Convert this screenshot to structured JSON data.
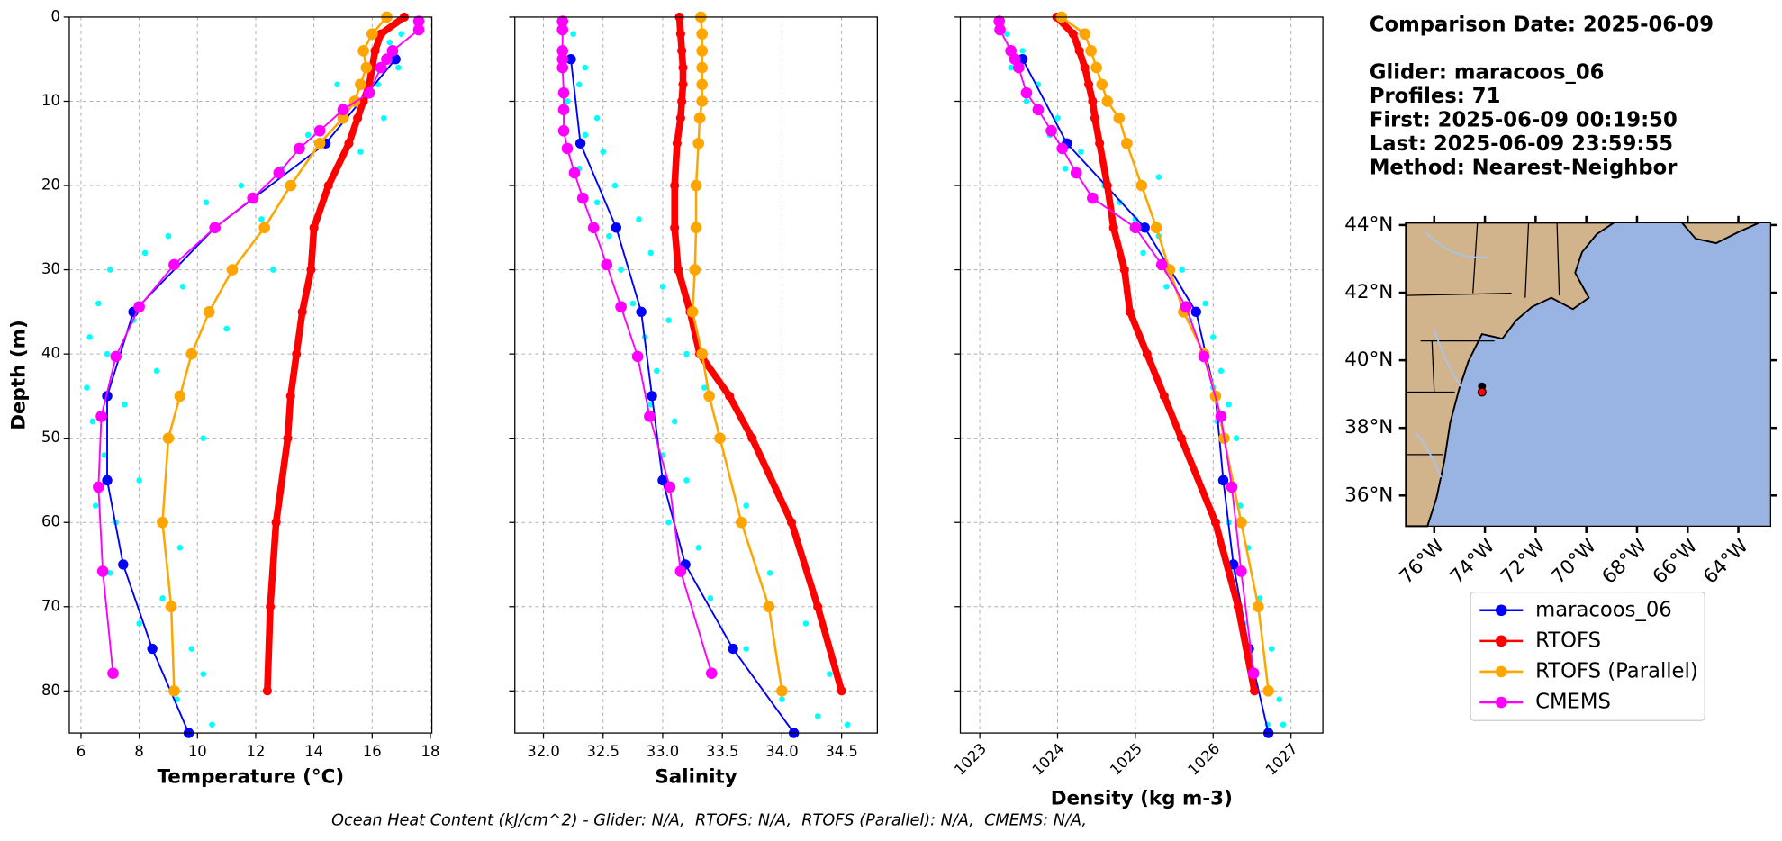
{
  "chart_data": [
    {
      "type": "profile",
      "xlabel": "Temperature (°C)",
      "ylabel": "Depth (m)",
      "show_ytick_labels": true,
      "xlim": [
        5.6,
        18.05
      ],
      "xticks": [
        6,
        8,
        10,
        12,
        14,
        16,
        18
      ],
      "ylim": [
        0,
        85
      ],
      "yticks": [
        0,
        10,
        20,
        30,
        40,
        50,
        60,
        70,
        80
      ],
      "invert_y": true,
      "grid": true,
      "scatter": {
        "color": "#00ffff",
        "x": [
          17.0,
          16.6,
          16.9,
          16.2,
          15.5,
          14.8,
          16.4,
          13.8,
          15.6,
          12.9,
          11.5,
          10.3,
          12.2,
          9.0,
          8.2,
          7.0,
          9.5,
          6.6,
          7.8,
          6.3,
          6.9,
          8.6,
          6.2,
          7.5,
          6.4,
          10.2,
          6.8,
          8.0,
          6.5,
          7.2,
          9.4,
          7.0,
          8.8,
          8.0,
          9.8,
          10.2,
          9.3,
          10.5,
          11.0,
          12.6
        ],
        "y": [
          2,
          3,
          6,
          8,
          10,
          8,
          12,
          14,
          16,
          18,
          20,
          22,
          24,
          26,
          28,
          30,
          32,
          34,
          36,
          38,
          40,
          42,
          44,
          46,
          48,
          50,
          52,
          55,
          58,
          60,
          63,
          66,
          69,
          72,
          75,
          78,
          81,
          84,
          37,
          30
        ]
      },
      "series": [
        {
          "name": "maracoos_06",
          "color": "#0000ff",
          "width": 1.5,
          "marker": 4.5,
          "x": [
            16.8,
            14.4,
            10.6,
            7.8,
            6.9,
            6.9,
            7.45,
            8.45,
            9.7
          ],
          "y": [
            5,
            15,
            25,
            35,
            45,
            55,
            65,
            75,
            85
          ]
        },
        {
          "name": "RTOFS",
          "color": "#ff0000",
          "width": 6,
          "marker": 4,
          "x": [
            17.1,
            16.3,
            16.1,
            16.0,
            15.9,
            15.7,
            15.5,
            15.2,
            14.5,
            14.0,
            13.9,
            13.6,
            13.4,
            13.2,
            13.1,
            12.7,
            12.5,
            12.4
          ],
          "y": [
            0,
            2,
            4,
            6,
            8,
            10,
            12,
            15,
            20,
            25,
            30,
            35,
            40,
            45,
            50,
            60,
            70,
            80
          ]
        },
        {
          "name": "RTOFS (Parallel)",
          "color": "#ffa500",
          "width": 2,
          "marker": 5,
          "x": [
            16.5,
            16.0,
            15.7,
            15.8,
            15.6,
            15.4,
            15.0,
            14.2,
            13.2,
            12.3,
            11.2,
            10.4,
            9.8,
            9.4,
            9.0,
            8.8,
            9.1,
            9.2
          ],
          "y": [
            0,
            2,
            4,
            6,
            8,
            10,
            12,
            15,
            20,
            25,
            30,
            35,
            40,
            45,
            50,
            60,
            70,
            80
          ]
        },
        {
          "name": "CMEMS",
          "color": "#ff00ff",
          "width": 1.5,
          "marker": 5,
          "x": [
            17.6,
            17.6,
            16.7,
            16.5,
            16.3,
            15.9,
            15.0,
            14.2,
            13.5,
            12.8,
            11.9,
            10.6,
            9.2,
            8.0,
            7.2,
            6.7,
            6.6,
            6.75,
            7.1
          ],
          "y": [
            0.5,
            1.5,
            4,
            5,
            6,
            9,
            11,
            13.5,
            15.6,
            18.5,
            21.5,
            25,
            29.4,
            34.4,
            40.3,
            47.4,
            55.8,
            65.8,
            77.9
          ]
        }
      ]
    },
    {
      "type": "profile",
      "xlabel": "Salinity",
      "show_ytick_labels": false,
      "xlim": [
        31.76,
        34.8
      ],
      "xticks": [
        {
          "value": 32,
          "label": "32.0"
        },
        32.5,
        {
          "value": 33,
          "label": "33.0"
        },
        33.5,
        {
          "value": 34,
          "label": "34.0"
        },
        34.5
      ],
      "ylim": [
        0,
        85
      ],
      "yticks": [
        0,
        10,
        20,
        30,
        40,
        50,
        60,
        70,
        80
      ],
      "invert_y": true,
      "grid": true,
      "scatter": {
        "color": "#00ffff",
        "x": [
          32.25,
          32.15,
          32.35,
          32.3,
          32.2,
          32.45,
          32.35,
          32.5,
          32.3,
          32.6,
          32.45,
          32.8,
          32.55,
          32.9,
          32.65,
          33.0,
          32.75,
          33.05,
          32.85,
          33.2,
          32.95,
          33.35,
          32.9,
          33.1,
          33.5,
          33.0,
          33.2,
          33.7,
          33.05,
          33.3,
          33.9,
          33.4,
          34.2,
          33.7,
          34.4,
          34.0,
          34.55,
          34.3
        ],
        "y": [
          2,
          4,
          6,
          8,
          10,
          12,
          14,
          16,
          18,
          20,
          22,
          24,
          26,
          28,
          30,
          32,
          34,
          36,
          38,
          40,
          42,
          44,
          46,
          48,
          50,
          52,
          55,
          58,
          60,
          63,
          66,
          69,
          72,
          75,
          78,
          81,
          84,
          83
        ]
      },
      "series": [
        {
          "color": "#0000ff",
          "width": 1.5,
          "marker": 4.5,
          "x": [
            32.23,
            32.31,
            32.61,
            32.82,
            32.91,
            33.0,
            33.19,
            33.59,
            34.1
          ],
          "y": [
            5,
            15,
            25,
            35,
            45,
            55,
            65,
            75,
            85
          ]
        },
        {
          "color": "#ff0000",
          "width": 6,
          "marker": 4,
          "x": [
            33.14,
            33.15,
            33.16,
            33.17,
            33.17,
            33.16,
            33.15,
            33.12,
            33.1,
            33.1,
            33.13,
            33.23,
            33.31,
            33.56,
            33.75,
            34.08,
            34.3,
            34.5
          ],
          "y": [
            0,
            2,
            4,
            6,
            8,
            10,
            12,
            15,
            20,
            25,
            30,
            35,
            40,
            45,
            50,
            60,
            70,
            80
          ]
        },
        {
          "color": "#ffa500",
          "width": 2,
          "marker": 5,
          "x": [
            33.32,
            33.33,
            33.33,
            33.33,
            33.33,
            33.33,
            33.31,
            33.3,
            33.28,
            33.28,
            33.27,
            33.25,
            33.33,
            33.39,
            33.48,
            33.66,
            33.89,
            34.0
          ],
          "y": [
            0,
            2,
            4,
            6,
            8,
            10,
            12,
            15,
            20,
            25,
            30,
            35,
            40,
            45,
            50,
            60,
            70,
            80
          ]
        },
        {
          "color": "#ff00ff",
          "width": 1.5,
          "marker": 5,
          "x": [
            32.16,
            32.16,
            32.16,
            32.16,
            32.16,
            32.17,
            32.17,
            32.17,
            32.2,
            32.26,
            32.33,
            32.42,
            32.53,
            32.65,
            32.79,
            32.89,
            33.06,
            33.15,
            33.41
          ],
          "y": [
            0.5,
            1.5,
            4,
            5,
            6,
            9,
            11,
            13.5,
            15.6,
            18.5,
            21.5,
            25,
            29.4,
            34.4,
            40.3,
            47.4,
            55.8,
            65.8,
            77.9
          ]
        }
      ]
    },
    {
      "type": "profile",
      "xlabel": "Density (kg m-3)",
      "show_ytick_labels": false,
      "xtick_rotation": -45,
      "xlim": [
        1022.75,
        1027.41
      ],
      "xticks": [
        1023,
        1024,
        1025,
        1026,
        1027
      ],
      "ylim": [
        0,
        85
      ],
      "yticks": [
        0,
        10,
        20,
        30,
        40,
        50,
        60,
        70,
        80
      ],
      "invert_y": true,
      "grid": true,
      "scatter": {
        "color": "#00ffff",
        "x": [
          1023.35,
          1023.55,
          1023.4,
          1023.75,
          1023.6,
          1024.0,
          1023.9,
          1024.3,
          1024.1,
          1025.3,
          1024.6,
          1024.8,
          1025.0,
          1025.3,
          1025.1,
          1025.6,
          1025.4,
          1025.9,
          1025.7,
          1026.0,
          1025.9,
          1026.1,
          1026.0,
          1026.2,
          1026.05,
          1026.3,
          1026.1,
          1026.35,
          1026.2,
          1026.45,
          1026.25,
          1026.6,
          1026.4,
          1026.75,
          1026.5,
          1026.85,
          1026.7,
          1026.9
        ],
        "y": [
          2,
          4,
          6,
          8,
          10,
          12,
          14,
          16,
          18,
          19,
          20,
          22,
          24,
          26,
          28,
          30,
          32,
          34,
          36,
          38,
          40,
          42,
          44,
          46,
          48,
          50,
          55,
          58,
          60,
          63,
          66,
          69,
          72,
          75,
          78,
          81,
          84,
          84
        ]
      },
      "series": [
        {
          "color": "#0000ff",
          "width": 1.5,
          "marker": 4.5,
          "x": [
            1023.55,
            1024.12,
            1025.12,
            1025.78,
            1026.03,
            1026.13,
            1026.26,
            1026.46,
            1026.71
          ],
          "y": [
            5,
            15,
            25,
            35,
            45,
            55,
            65,
            75,
            85
          ]
        },
        {
          "color": "#ff0000",
          "width": 6,
          "marker": 4,
          "x": [
            1023.99,
            1024.2,
            1024.28,
            1024.35,
            1024.4,
            1024.45,
            1024.48,
            1024.54,
            1024.64,
            1024.72,
            1024.86,
            1024.93,
            1025.15,
            1025.37,
            1025.59,
            1026.03,
            1026.32,
            1026.53
          ],
          "y": [
            0,
            2,
            4,
            6,
            8,
            10,
            12,
            15,
            20,
            25,
            30,
            35,
            40,
            45,
            50,
            60,
            70,
            80
          ]
        },
        {
          "color": "#ffa500",
          "width": 2,
          "marker": 5,
          "x": [
            1024.05,
            1024.35,
            1024.43,
            1024.5,
            1024.57,
            1024.64,
            1024.79,
            1024.89,
            1025.08,
            1025.27,
            1025.44,
            1025.62,
            1025.88,
            1026.03,
            1026.14,
            1026.36,
            1026.58,
            1026.71
          ],
          "y": [
            0,
            2,
            4,
            6,
            8,
            10,
            12,
            15,
            20,
            25,
            30,
            35,
            40,
            45,
            50,
            60,
            70,
            80
          ]
        },
        {
          "color": "#ff00ff",
          "width": 1.5,
          "marker": 5,
          "x": [
            1023.25,
            1023.26,
            1023.4,
            1023.45,
            1023.5,
            1023.6,
            1023.75,
            1023.92,
            1024.06,
            1024.24,
            1024.45,
            1025.0,
            1025.34,
            1025.65,
            1025.88,
            1026.1,
            1026.24,
            1026.36,
            1026.52
          ],
          "y": [
            0.5,
            1.5,
            4,
            5,
            6,
            9,
            11,
            13.5,
            15.6,
            18.5,
            21.5,
            25,
            29.4,
            34.4,
            40.3,
            47.4,
            55.8,
            65.8,
            77.9
          ]
        }
      ]
    }
  ],
  "info": [
    "Comparison Date: 2025-06-09",
    "Glider: maracoos_06",
    "Profiles: 71",
    "First: 2025-06-09 00:19:50",
    "Last: 2025-06-09 23:59:55",
    "Method: Nearest-Neighbor"
  ],
  "map": {
    "lat_labels": [
      "44°N",
      "42°N",
      "40°N",
      "38°N",
      "36°N"
    ],
    "lon_labels": [
      "76°W",
      "74°W",
      "72°W",
      "70°W",
      "68°W",
      "66°W",
      "64°W"
    ]
  },
  "footer": "Ocean Heat Content (kJ/cm^2) - Glider: N/A,  RTOFS: N/A,  RTOFS (Parallel): N/A,  CMEMS: N/A,"
}
